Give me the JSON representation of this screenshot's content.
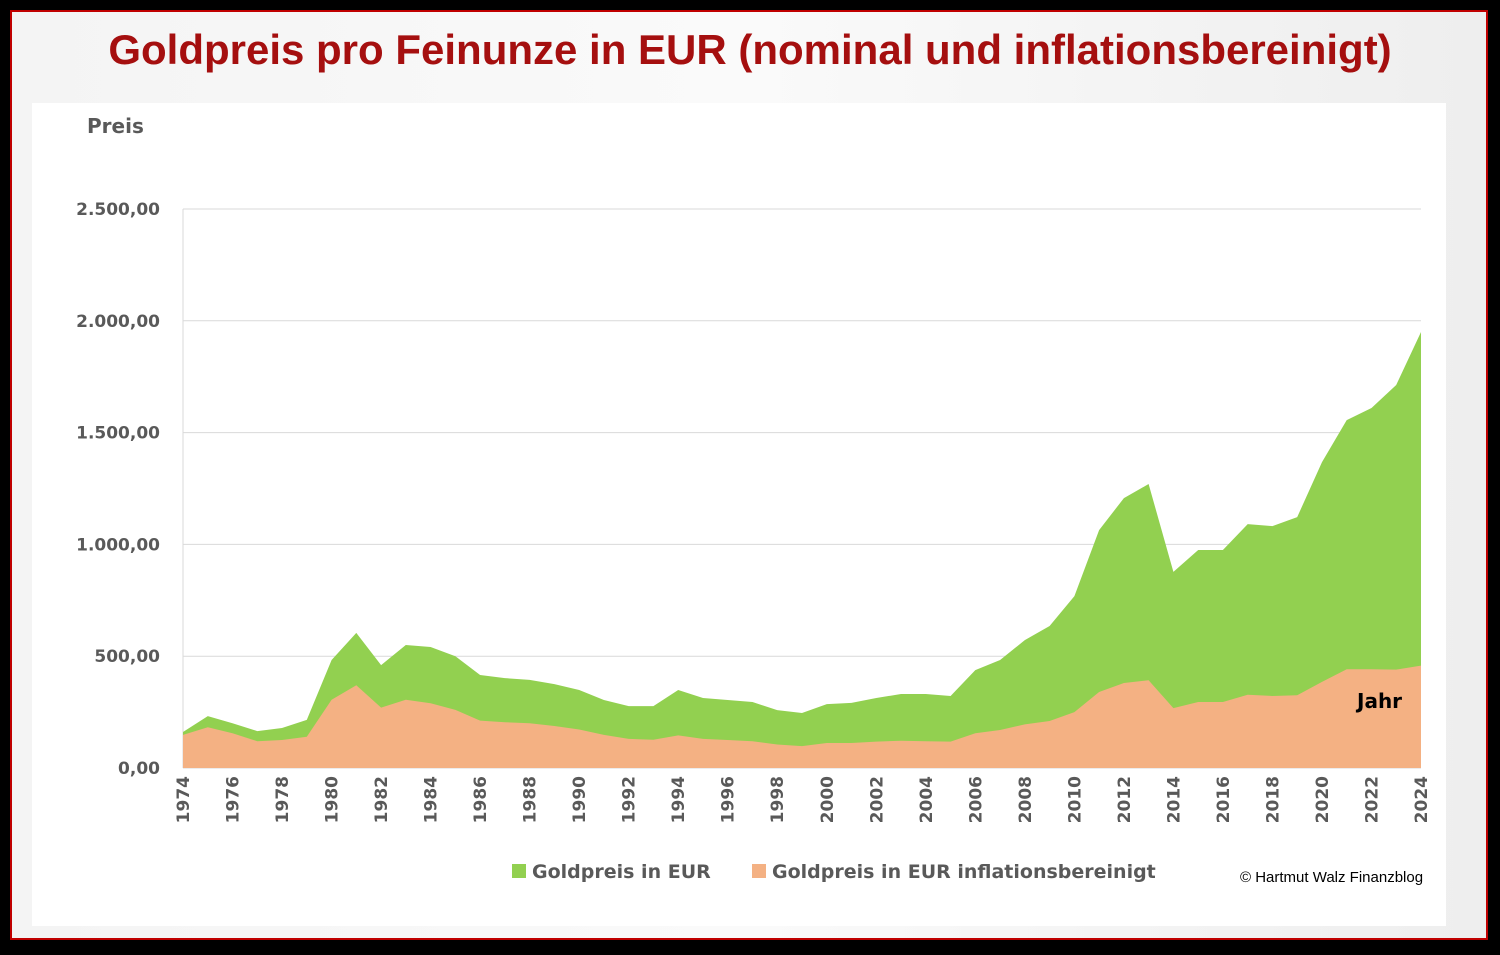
{
  "chart_data": {
    "type": "area",
    "title": "Goldpreis pro Feinunze in EUR (nominal und inflationsbereinigt)",
    "ylabel": "Preis",
    "xlabel": "Jahr",
    "ylim": [
      0,
      2500
    ],
    "yticks": [
      "0,00",
      "500,00",
      "1.000,00",
      "1.500,00",
      "2.000,00",
      "2.500,00"
    ],
    "ytick_values": [
      0,
      500,
      1000,
      1500,
      2000,
      2500
    ],
    "grid": true,
    "legend_position": "bottom",
    "x": [
      1974,
      1975,
      1976,
      1977,
      1978,
      1979,
      1980,
      1981,
      1982,
      1983,
      1984,
      1985,
      1986,
      1987,
      1988,
      1989,
      1990,
      1991,
      1992,
      1993,
      1994,
      1995,
      1996,
      1997,
      1998,
      1999,
      2000,
      2001,
      2002,
      2003,
      2004,
      2005,
      2006,
      2007,
      2008,
      2009,
      2010,
      2011,
      2012,
      2013,
      2014,
      2015,
      2016,
      2017,
      2018,
      2019,
      2020,
      2021,
      2022,
      2023,
      2024
    ],
    "series": [
      {
        "name": "Goldpreis in EUR",
        "color": "#92d050",
        "values": [
          161,
          232,
          200,
          165,
          179,
          215,
          483,
          604,
          460,
          550,
          541,
          500,
          416,
          402,
          394,
          375,
          349,
          304,
          277,
          277,
          349,
          313,
          304,
          295,
          259,
          246,
          286,
          291,
          313,
          331,
          331,
          322,
          438,
          483,
          572,
          635,
          769,
          1064,
          1207,
          1270,
          877,
          975,
          975,
          1091,
          1082,
          1122,
          1368,
          1556,
          1610,
          1713,
          1950
        ]
      },
      {
        "name": "Goldpreis in EUR inflationsbereinigt",
        "color": "#f4b183",
        "values": [
          148,
          182,
          155,
          120,
          125,
          140,
          305,
          370,
          270,
          305,
          290,
          260,
          212,
          205,
          200,
          188,
          172,
          148,
          130,
          126,
          146,
          130,
          125,
          120,
          105,
          98,
          112,
          112,
          118,
          122,
          120,
          118,
          155,
          170,
          195,
          210,
          250,
          340,
          380,
          392,
          268,
          295,
          295,
          328,
          322,
          325,
          385,
          442,
          442,
          440,
          458
        ]
      }
    ],
    "copyright": "© Hartmut  Walz Finanzblog"
  },
  "colors": {
    "title": "#a50f0f",
    "frame": "#c00000"
  }
}
